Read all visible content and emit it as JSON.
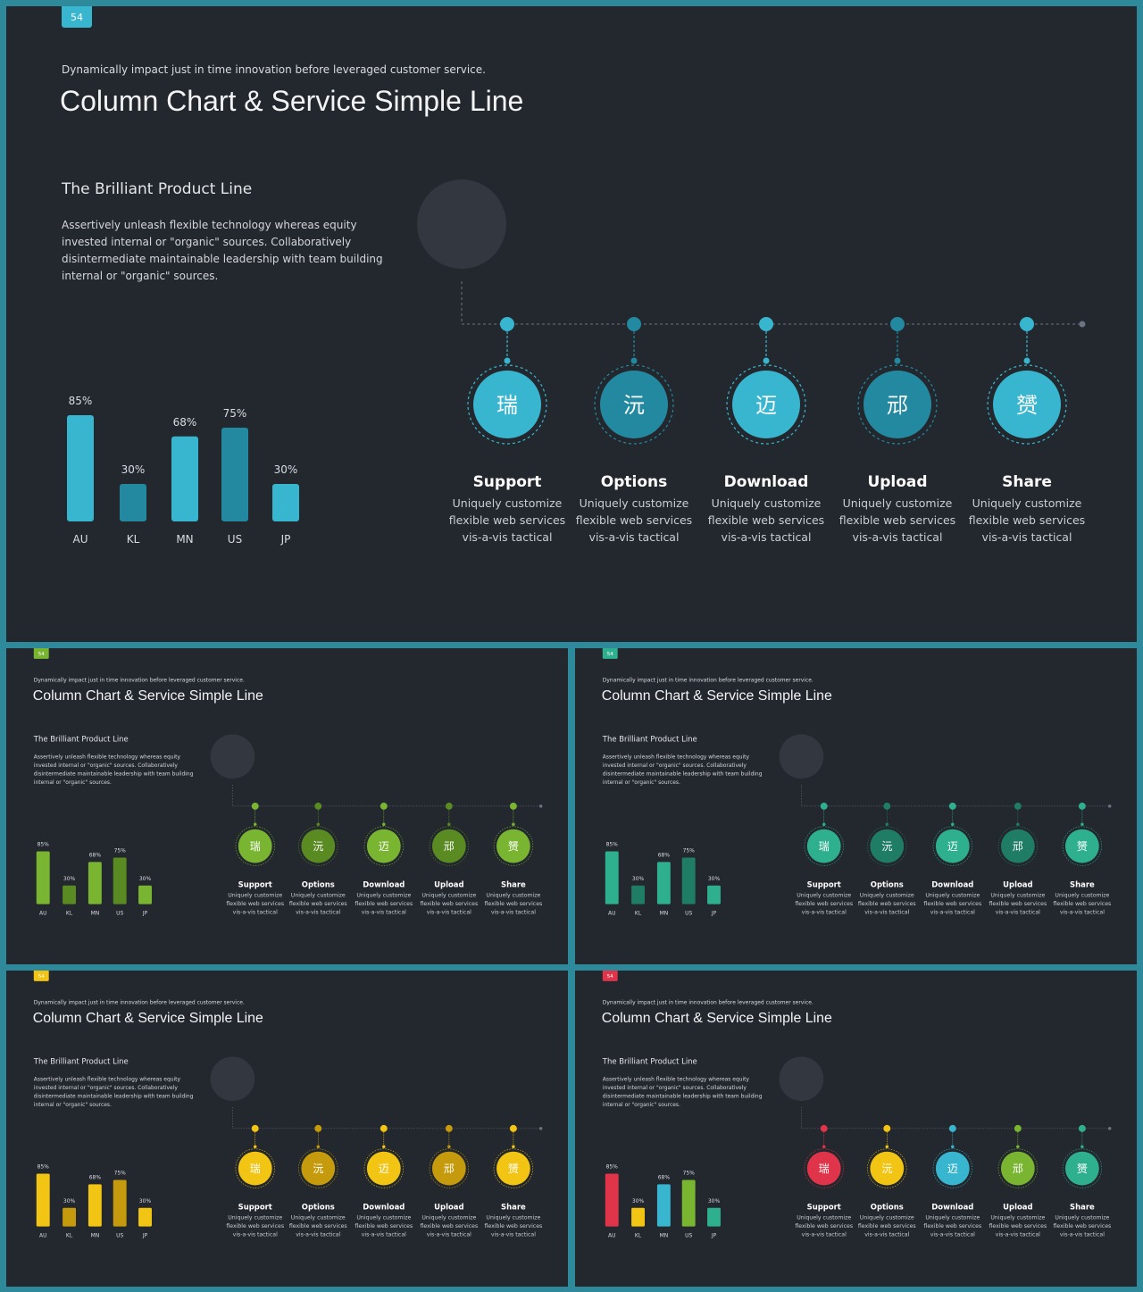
{
  "slide": {
    "badge": "54",
    "subtitle": "Dynamically impact just in time innovation  before leveraged customer service.",
    "title": "Column Chart & Service Simple Line",
    "product_title": "The Brilliant  Product  Line",
    "product_body": "Assertively unleash flexible technology whereas equity invested internal or \"organic\" sources. Collaboratively disintermediate maintainable leadership with team building internal or \"organic\" sources.",
    "services": [
      {
        "icon": "瑞",
        "title": "Support",
        "lines": [
          "Uniquely customize",
          "flexible web services",
          "vis-a-vis tactical"
        ]
      },
      {
        "icon": "沅",
        "title": "Options",
        "lines": [
          "Uniquely customize",
          "flexible web services",
          "vis-a-vis tactical"
        ]
      },
      {
        "icon": "迈",
        "title": "Download",
        "lines": [
          "Uniquely customize",
          "flexible web services",
          "vis-a-vis tactical"
        ]
      },
      {
        "icon": "邧",
        "title": "Upload",
        "lines": [
          "Uniquely customize",
          "flexible web services",
          "vis-a-vis tactical"
        ]
      },
      {
        "icon": "赟",
        "title": "Share",
        "lines": [
          "Uniquely customize",
          "flexible web services",
          "vis-a-vis tactical"
        ]
      }
    ]
  },
  "chart_data": {
    "type": "bar",
    "categories": [
      "AU",
      "KL",
      "MN",
      "US",
      "JP"
    ],
    "values": [
      85,
      30,
      68,
      75,
      30
    ],
    "value_labels": [
      "85%",
      "30%",
      "68%",
      "75%",
      "30%"
    ],
    "title": "",
    "xlabel": "",
    "ylabel": "",
    "ylim": [
      0,
      100
    ],
    "grid": false
  },
  "themes": [
    {
      "name": "blue",
      "badge": "#38b6cf",
      "bars": [
        "#38b6cf",
        "#2289a0",
        "#38b6cf",
        "#2289a0",
        "#38b6cf"
      ],
      "nodes": [
        "#38b6cf",
        "#2289a0",
        "#38b6cf",
        "#2289a0",
        "#38b6cf"
      ],
      "line": "#38b6cf"
    },
    {
      "name": "green",
      "badge": "#7ab532",
      "bars": [
        "#7ab532",
        "#5a8a22",
        "#7ab532",
        "#5a8a22",
        "#7ab532"
      ],
      "nodes": [
        "#7ab532",
        "#5a8a22",
        "#7ab532",
        "#5a8a22",
        "#7ab532"
      ],
      "line": "#7ab532"
    },
    {
      "name": "teal",
      "badge": "#2eb08e",
      "bars": [
        "#2eb08e",
        "#1f7d65",
        "#2eb08e",
        "#1f7d65",
        "#2eb08e"
      ],
      "nodes": [
        "#2eb08e",
        "#1f7d65",
        "#2eb08e",
        "#1f7d65",
        "#2eb08e"
      ],
      "line": "#2eb08e"
    },
    {
      "name": "yellow",
      "badge": "#f2c414",
      "bars": [
        "#f2c414",
        "#c59a0c",
        "#f2c414",
        "#c59a0c",
        "#f2c414"
      ],
      "nodes": [
        "#f2c414",
        "#c59a0c",
        "#f2c414",
        "#c59a0c",
        "#f2c414"
      ],
      "line": "#f2c414"
    },
    {
      "name": "multi",
      "badge": "#e0344a",
      "bars": [
        "#e0344a",
        "#f2c414",
        "#38b6cf",
        "#7ab532",
        "#2eb08e"
      ],
      "nodes": [
        "#e0344a",
        "#f2c414",
        "#38b6cf",
        "#7ab532",
        "#2eb08e"
      ],
      "line": "#38b6cf"
    }
  ]
}
